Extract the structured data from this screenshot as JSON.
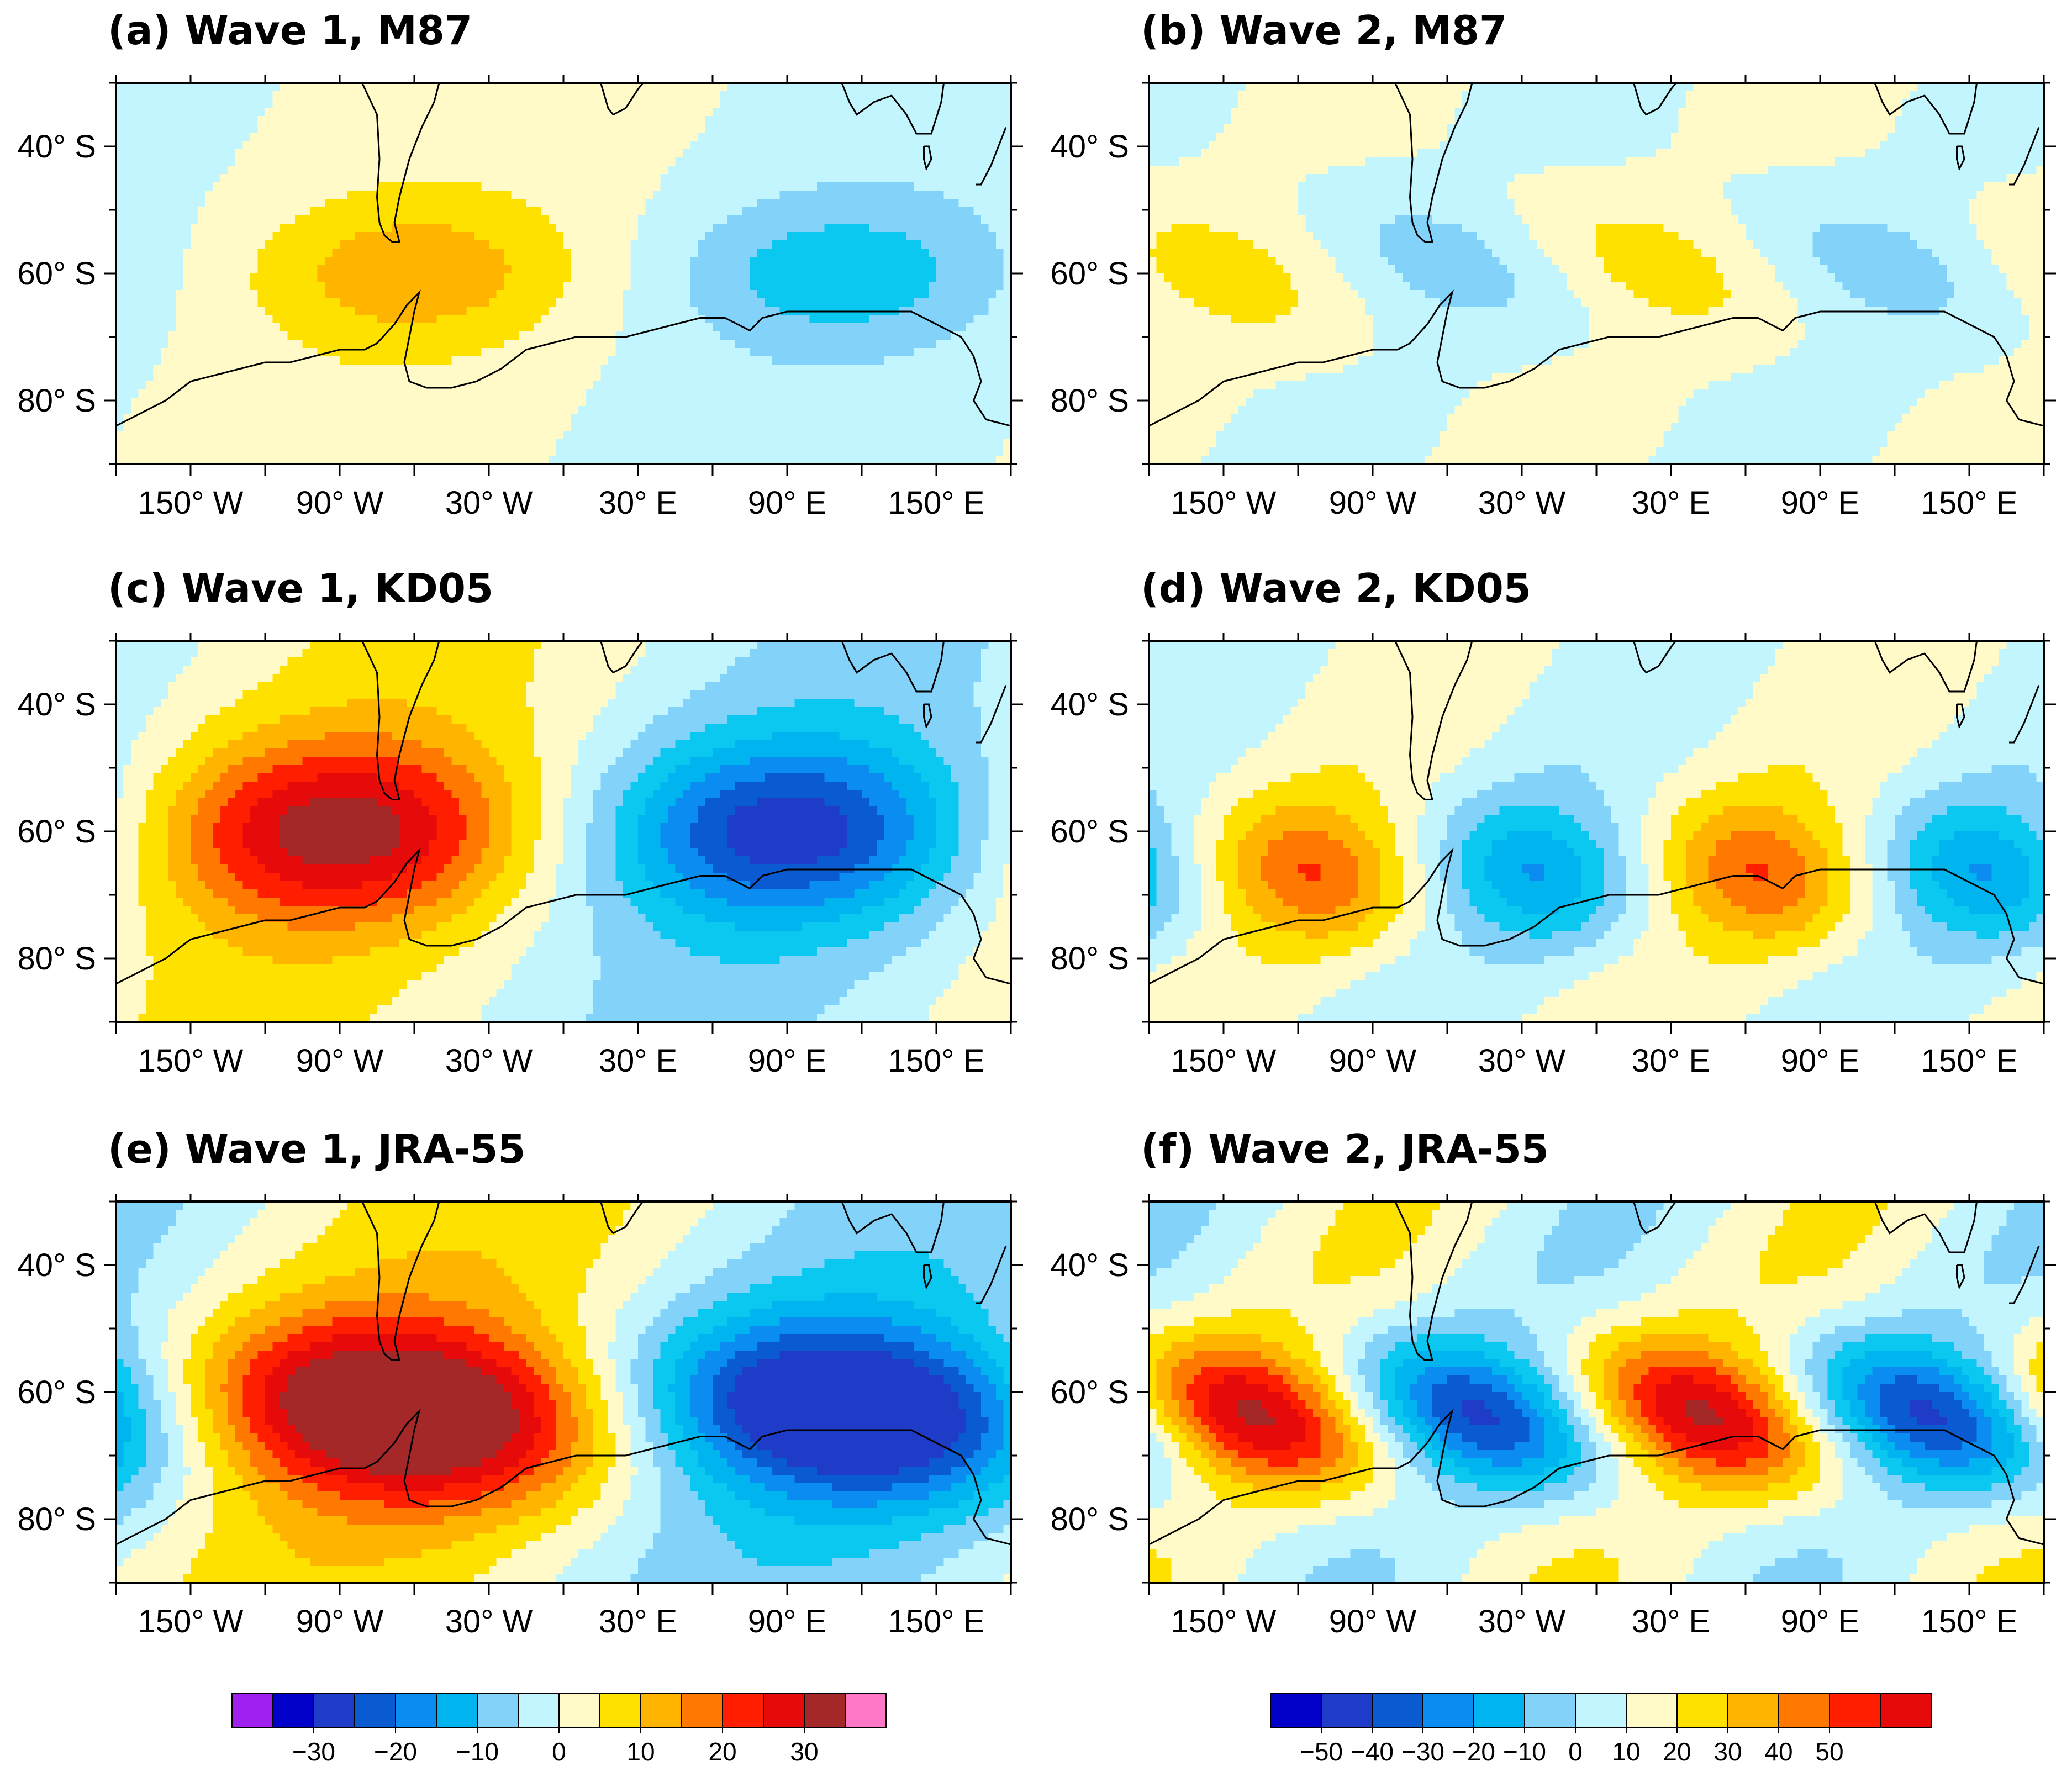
{
  "colors": {
    "m40": "#0000c8",
    "m35": "#1e3cc8",
    "m30": "#0a5ad2",
    "m25": "#0a8cf0",
    "m20": "#00b4f0",
    "m15": "#0ac8f0",
    "m10": "#82d2fa",
    "m5": "#c3f5ff",
    "p5": "#fffac8",
    "p10": "#ffe100",
    "p15": "#ffb400",
    "p20": "#ff7800",
    "p25": "#ff1e00",
    "p30": "#e60a0a",
    "p35": "#a52828",
    "p40": "#ff78c8",
    "purple": "#a020f0",
    "coast": "#000000"
  },
  "chart_data": [
    {
      "id": "a",
      "type": "heatmap",
      "title": "(a) Wave 1, M87",
      "wave": 1,
      "xlabel": "",
      "ylabel": "",
      "xlim": [
        -180,
        180
      ],
      "ylim": [
        -90,
        -30
      ],
      "xtick_labels": [
        "150° W",
        "90° W",
        "30° W",
        "30° E",
        "90° E",
        "150° E"
      ],
      "ytick_labels": [
        "40° S",
        "60° S",
        "80° S"
      ],
      "peak_amplitude": 12,
      "anomalies": [
        {
          "lon": -60,
          "lat": -60,
          "value": 11,
          "lon_halfwidth": 45,
          "lat_halfwidth": 8,
          "tilt": 0
        },
        {
          "lon": 110,
          "lat": -60,
          "value": -11,
          "lon_halfwidth": 45,
          "lat_halfwidth": 8,
          "tilt": 0
        }
      ],
      "colorbar_levels": [
        -40,
        -35,
        -30,
        -25,
        -20,
        -15,
        -10,
        -5,
        0,
        5,
        10,
        15,
        20,
        25,
        30,
        35,
        40
      ]
    },
    {
      "id": "b",
      "type": "heatmap",
      "title": "(b) Wave 2, M87",
      "wave": 2,
      "xlabel": "",
      "ylabel": "",
      "xlim": [
        -180,
        180
      ],
      "ylim": [
        -90,
        -30
      ],
      "xtick_labels": [
        "150° W",
        "90° W",
        "30° W",
        "30° E",
        "90° E",
        "150° E"
      ],
      "ytick_labels": [
        "40° S",
        "60° S",
        "80° S"
      ],
      "peak_amplitude": 14,
      "anomalies": [
        {
          "lon": -150,
          "lat": -60,
          "value": 12,
          "lon_halfwidth": 30,
          "lat_halfwidth": 9,
          "tilt": -1.0
        },
        {
          "lon": -60,
          "lat": -58,
          "value": -12,
          "lon_halfwidth": 30,
          "lat_halfwidth": 9,
          "tilt": -1.0
        },
        {
          "lon": 20,
          "lat": -58,
          "value": 12,
          "lon_halfwidth": 30,
          "lat_halfwidth": 9,
          "tilt": -1.0
        },
        {
          "lon": 110,
          "lat": -58,
          "value": -12,
          "lon_halfwidth": 30,
          "lat_halfwidth": 9,
          "tilt": -1.0
        }
      ],
      "colorbar_levels": [
        -60,
        -55,
        -50,
        -45,
        -40,
        -35,
        -30,
        -25,
        -20,
        -15,
        -10,
        -5,
        0,
        5,
        10,
        15,
        20,
        25,
        30,
        35,
        40,
        45,
        50,
        55,
        60
      ]
    },
    {
      "id": "c",
      "type": "heatmap",
      "title": "(c) Wave 1, KD05",
      "wave": 1,
      "xlabel": "",
      "ylabel": "",
      "xlim": [
        -180,
        180
      ],
      "ylim": [
        -90,
        -30
      ],
      "xtick_labels": [
        "150° W",
        "90° W",
        "30° W",
        "30° E",
        "90° E",
        "150° E"
      ],
      "ytick_labels": [
        "40° S",
        "60° S",
        "80° S"
      ],
      "peak_amplitude": 28,
      "anomalies": [
        {
          "lon": -90,
          "lat": -60,
          "value": 27,
          "lon_halfwidth": 50,
          "lat_halfwidth": 10,
          "tilt": 0
        },
        {
          "lon": 90,
          "lat": -60,
          "value": -27,
          "lon_halfwidth": 50,
          "lat_halfwidth": 10,
          "tilt": 0
        }
      ],
      "colorbar_levels": [
        -40,
        -35,
        -30,
        -25,
        -20,
        -15,
        -10,
        -5,
        0,
        5,
        10,
        15,
        20,
        25,
        30,
        35,
        40
      ]
    },
    {
      "id": "d",
      "type": "heatmap",
      "title": "(d) Wave 2, KD05",
      "wave": 2,
      "xlabel": "",
      "ylabel": "",
      "xlim": [
        -180,
        180
      ],
      "ylim": [
        -90,
        -30
      ],
      "xtick_labels": [
        "150° W",
        "90° W",
        "30° W",
        "30° E",
        "90° E",
        "150° E"
      ],
      "ytick_labels": [
        "40° S",
        "60° S",
        "80° S"
      ],
      "peak_amplitude": 34,
      "anomalies": [
        {
          "lon": -112,
          "lat": -67,
          "value": 33,
          "lon_halfwidth": 26,
          "lat_halfwidth": 8,
          "tilt": -0.3
        },
        {
          "lon": -22,
          "lat": -67,
          "value": -33,
          "lon_halfwidth": 26,
          "lat_halfwidth": 8,
          "tilt": -0.3
        },
        {
          "lon": 68,
          "lat": -67,
          "value": 33,
          "lon_halfwidth": 26,
          "lat_halfwidth": 8,
          "tilt": -0.3
        },
        {
          "lon": 158,
          "lat": -67,
          "value": -33,
          "lon_halfwidth": 26,
          "lat_halfwidth": 8,
          "tilt": -0.3
        }
      ],
      "colorbar_levels": [
        -60,
        -55,
        -50,
        -45,
        -40,
        -35,
        -30,
        -25,
        -20,
        -15,
        -10,
        -5,
        0,
        5,
        10,
        15,
        20,
        25,
        30,
        35,
        40,
        45,
        50,
        55,
        60
      ]
    },
    {
      "id": "e",
      "type": "heatmap",
      "title": "(e) Wave 1, JRA-55",
      "wave": 1,
      "xlabel": "",
      "ylabel": "",
      "xlim": [
        -180,
        180
      ],
      "ylim": [
        -90,
        -30
      ],
      "xtick_labels": [
        "150° W",
        "90° W",
        "30° W",
        "30° E",
        "90° E",
        "150° E"
      ],
      "ytick_labels": [
        "40° S",
        "60° S",
        "80° S"
      ],
      "peak_amplitude": 37,
      "anomalies": [
        {
          "lon": -65,
          "lat": -63,
          "value": 36,
          "lon_halfwidth": 60,
          "lat_halfwidth": 10,
          "tilt": -0.4
        },
        {
          "lon": 115,
          "lat": -63,
          "value": -36,
          "lon_halfwidth": 60,
          "lat_halfwidth": 10,
          "tilt": -0.4
        }
      ],
      "colorbar_levels": [
        -40,
        -35,
        -30,
        -25,
        -20,
        -15,
        -10,
        -5,
        0,
        5,
        10,
        15,
        20,
        25,
        30,
        35,
        40
      ]
    },
    {
      "id": "f",
      "type": "heatmap",
      "title": "(f) Wave 2, JRA-55",
      "wave": 2,
      "xlabel": "",
      "ylabel": "",
      "xlim": [
        -180,
        180
      ],
      "ylim": [
        -90,
        -30
      ],
      "xtick_labels": [
        "150° W",
        "90° W",
        "30° W",
        "30° E",
        "90° E",
        "150° E"
      ],
      "ytick_labels": [
        "40° S",
        "60° S",
        "80° S"
      ],
      "peak_amplitude": 52,
      "anomalies": [
        {
          "lon": -135,
          "lat": -64,
          "value": 50,
          "lon_halfwidth": 30,
          "lat_halfwidth": 9,
          "tilt": -0.8
        },
        {
          "lon": -45,
          "lat": -64,
          "value": -50,
          "lon_halfwidth": 30,
          "lat_halfwidth": 9,
          "tilt": -0.8
        },
        {
          "lon": 45,
          "lat": -64,
          "value": 50,
          "lon_halfwidth": 30,
          "lat_halfwidth": 9,
          "tilt": -0.8
        },
        {
          "lon": 135,
          "lat": -64,
          "value": -50,
          "lon_halfwidth": 30,
          "lat_halfwidth": 9,
          "tilt": -0.8
        }
      ],
      "colorbar_levels": [
        -60,
        -55,
        -50,
        -45,
        -40,
        -35,
        -30,
        -25,
        -20,
        -15,
        -10,
        -5,
        0,
        5,
        10,
        15,
        20,
        25,
        30,
        35,
        40,
        45,
        50,
        55,
        60
      ]
    }
  ],
  "colorbars": [
    {
      "id": "wave1",
      "levels": [
        -35,
        -30,
        -25,
        -20,
        -15,
        -10,
        -5,
        0,
        5,
        10,
        15,
        20,
        25,
        30,
        35
      ],
      "tick_labels": [
        "−30",
        "−20",
        "−10",
        "0",
        "10",
        "20",
        "30"
      ],
      "tick_values": [
        -30,
        -20,
        -10,
        0,
        10,
        20,
        30
      ]
    },
    {
      "id": "wave2",
      "levels": [
        -55,
        -50,
        -40,
        -30,
        -20,
        -10,
        0,
        10,
        20,
        30,
        40,
        50,
        55
      ],
      "tick_labels": [
        "−50",
        "−40",
        "−30",
        "−20",
        "−10",
        "0",
        "10",
        "20",
        "30",
        "40",
        "50"
      ],
      "tick_values": [
        -50,
        -40,
        -30,
        -20,
        -10,
        0,
        10,
        20,
        30,
        40,
        50
      ]
    }
  ]
}
